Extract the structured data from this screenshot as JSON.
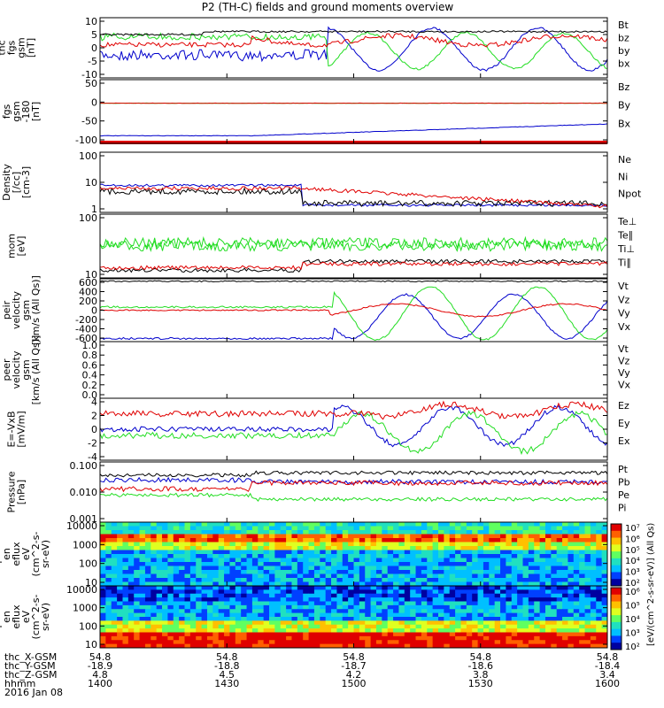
{
  "title": "P2 (TH-C) fields and ground moments overview",
  "colors": {
    "black": "#000000",
    "red": "#e00000",
    "green": "#22dd22",
    "blue": "#0000cc"
  },
  "chart_data": {
    "type": "line",
    "x_range_hhmm": [
      "1400",
      "1600"
    ],
    "panels": [
      {
        "id": "fgs",
        "ylabel": [
          "thc",
          "fgs",
          "gsm",
          "[nT]"
        ],
        "ylim": [
          -10,
          10
        ],
        "yticks": [
          "10",
          "5",
          "0",
          "-5",
          "-10"
        ],
        "legend": [
          {
            "name": "Bt",
            "color": "black"
          },
          {
            "name": "bz",
            "color": "red"
          },
          {
            "name": "by",
            "color": "green"
          },
          {
            "name": "bx",
            "color": "blue"
          }
        ]
      },
      {
        "id": "fgs_gsm",
        "ylabel": [
          "thc",
          "fgs",
          "gsm",
          "-180",
          "[nT]"
        ],
        "ylim": [
          -180,
          50
        ],
        "yticks": [
          "50",
          "0",
          "-50",
          "-100"
        ],
        "legend": [
          {
            "name": "Bz",
            "color": "red"
          },
          {
            "name": "By",
            "color": "green"
          },
          {
            "name": "Bx",
            "color": "blue"
          }
        ]
      },
      {
        "id": "density",
        "ylabel": [
          "Density",
          "[/cc]",
          "[cm-3]"
        ],
        "log": true,
        "ylim": [
          0.7,
          200
        ],
        "yticks": [
          "100",
          "10",
          "1"
        ],
        "legend": [
          {
            "name": "Ne",
            "color": "red"
          },
          {
            "name": "Ni",
            "color": "black"
          },
          {
            "name": "Npot",
            "color": "blue"
          }
        ]
      },
      {
        "id": "temp",
        "ylabel": [
          "mom",
          "[eV]"
        ],
        "log": true,
        "ylim": [
          7,
          1000
        ],
        "yticks": [
          "100",
          "10"
        ],
        "legend": [
          {
            "name": "Te⊥",
            "color": "red"
          },
          {
            "name": "Te∥",
            "color": "black"
          },
          {
            "name": "Ti⊥",
            "color": "green"
          },
          {
            "name": "Ti∥",
            "color": "green"
          }
        ]
      },
      {
        "id": "peir_vel",
        "ylabel": [
          "thc",
          "peir",
          "velocity",
          "gsm",
          "[km/s (All Qs)]"
        ],
        "ylim": [
          -650,
          620
        ],
        "yticks": [
          "600",
          "400",
          "200",
          "0",
          "-200",
          "-400",
          "-600"
        ],
        "legend": [
          {
            "name": "Vt",
            "color": "black"
          },
          {
            "name": "Vz",
            "color": "red"
          },
          {
            "name": "Vy",
            "color": "green"
          },
          {
            "name": "Vx",
            "color": "blue"
          }
        ]
      },
      {
        "id": "peer_vel",
        "ylabel": [
          "thc",
          "peer",
          "velocity",
          "gsm",
          "[km/s (All Qs)]"
        ],
        "ylim": [
          0,
          1
        ],
        "yticks": [
          "1.0",
          "0.8",
          "0.6",
          "0.4",
          "0.2",
          "0.0"
        ],
        "legend": [
          {
            "name": "Vt",
            "color": "black"
          },
          {
            "name": "Vz",
            "color": "red"
          },
          {
            "name": "Vy",
            "color": "green"
          },
          {
            "name": "Vx",
            "color": "blue"
          }
        ]
      },
      {
        "id": "efield",
        "ylabel": [
          "E=-VxB",
          "[mV/m]"
        ],
        "ylim": [
          -4,
          4
        ],
        "yticks": [
          "4",
          "2",
          "0",
          "-2",
          "-4"
        ],
        "legend": [
          {
            "name": "Ez",
            "color": "red"
          },
          {
            "name": "Ey",
            "color": "green"
          },
          {
            "name": "Ex",
            "color": "blue"
          }
        ]
      },
      {
        "id": "pressure",
        "ylabel": [
          "Pressure",
          "[nPa]"
        ],
        "log": true,
        "ylim": [
          0.001,
          0.14
        ],
        "yticks": [
          "0.100",
          "0.010",
          "0.001"
        ],
        "legend": [
          {
            "name": "Pt",
            "color": "black"
          },
          {
            "name": "Pb",
            "color": "red"
          },
          {
            "name": "Pe",
            "color": "green"
          },
          {
            "name": "Pi",
            "color": "blue"
          }
        ]
      },
      {
        "id": "peir_spec",
        "type": "heatmap",
        "ylabel": [
          "thc",
          "peir",
          "en",
          "eflux",
          "eV",
          "(cm^2-s-",
          "sr-eV)"
        ],
        "yticks": [
          "10000",
          "1000",
          "100",
          "10"
        ]
      },
      {
        "id": "peer_spec",
        "type": "heatmap",
        "ylabel": [
          "thc",
          "peer",
          "en",
          "eflux",
          "eV",
          "(cm^2-s-",
          "sr-eV)"
        ],
        "yticks": [
          "10000",
          "1000",
          "100",
          "10"
        ]
      }
    ],
    "colorbar": {
      "label": "[eV/(cm^2-s-sr-eV)] (All Qs)",
      "upper_ticks": [
        "10⁷",
        "10⁶",
        "10⁵",
        "10⁴",
        "10³",
        "10²"
      ],
      "lower_ticks": [
        "10⁶",
        "10⁵",
        "10⁴",
        "10³",
        "10²"
      ]
    },
    "x_axis_rows": [
      {
        "label": "thc_X-GSM",
        "values": [
          "54.8",
          "54.8",
          "54.8",
          "54.8",
          "54.8"
        ]
      },
      {
        "label": "thc_Y-GSM",
        "values": [
          "-18.9",
          "-18.8",
          "-18.7",
          "-18.6",
          "-18.4"
        ]
      },
      {
        "label": "thc_Z-GSM",
        "values": [
          "4.8",
          "4.5",
          "4.2",
          "3.8",
          "3.4"
        ]
      },
      {
        "label": "hhmm",
        "values": [
          "1400",
          "1430",
          "1500",
          "1530",
          "1600"
        ]
      }
    ],
    "date": "2016 Jan 08"
  }
}
